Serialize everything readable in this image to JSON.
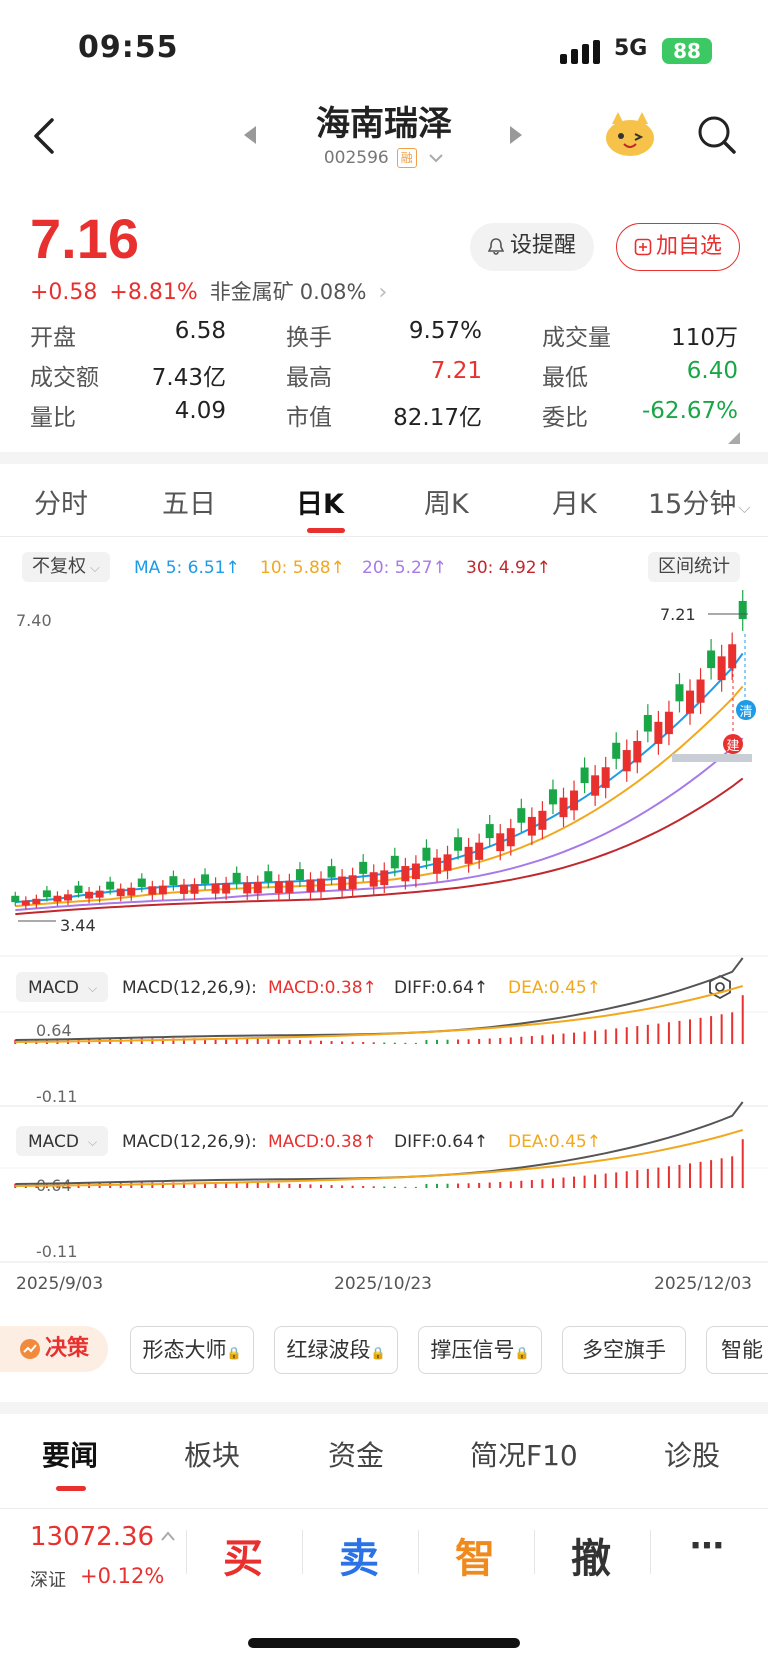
{
  "status": {
    "time": "09:55",
    "network": "5G",
    "battery": "88"
  },
  "header": {
    "stock_name": "海南瑞泽",
    "stock_code": "002596",
    "margin_badge": "融"
  },
  "quote": {
    "price": "7.16",
    "change": "+0.58",
    "change_pct": "+8.81%",
    "sector": "非金属矿",
    "sector_pct": "0.08%",
    "alert_label": "设提醒",
    "watch_label": "加自选"
  },
  "stats": [
    [
      {
        "label": "开盘",
        "value": "6.58",
        "color": "#222"
      },
      {
        "label": "换手",
        "value": "9.57%",
        "color": "#222"
      },
      {
        "label": "成交量",
        "value": "110万",
        "color": "#222"
      }
    ],
    [
      {
        "label": "成交额",
        "value": "7.43亿",
        "color": "#222"
      },
      {
        "label": "最高",
        "value": "7.21",
        "color": "#e8312f"
      },
      {
        "label": "最低",
        "value": "6.40",
        "color": "#19a647"
      }
    ],
    [
      {
        "label": "量比",
        "value": "4.09",
        "color": "#222"
      },
      {
        "label": "市值",
        "value": "82.17亿",
        "color": "#222"
      },
      {
        "label": "委比",
        "value": "-62.67%",
        "color": "#19a647"
      }
    ]
  ],
  "chart_tabs": [
    "分时",
    "五日",
    "日K",
    "周K",
    "月K",
    "15分钟"
  ],
  "chart_header": {
    "adjust": "不复权",
    "ma": [
      {
        "text": "MA 5: 6.51↑",
        "color": "#1e9be8"
      },
      {
        "text": "10: 5.88↑",
        "color": "#f2a81d"
      },
      {
        "text": "20: 5.27↑",
        "color": "#a77ae8"
      },
      {
        "text": "30: 4.92↑",
        "color": "#c0282d"
      }
    ],
    "range_stats": "区间统计"
  },
  "kline": {
    "y_top_label": "7.40",
    "high_label": "7.21",
    "low_label": "3.44",
    "marker_qing": "清",
    "marker_jian": "建"
  },
  "macd": {
    "selector": "MACD",
    "params": "MACD(12,26,9):",
    "macd": "MACD:0.38↑",
    "diff": "DIFF:0.64↑",
    "dea": "DEA:0.45↑",
    "y_top": "0.64",
    "y_bottom": "-0.11"
  },
  "dates": [
    "2025/9/03",
    "2025/10/23",
    "2025/12/03"
  ],
  "tools": {
    "decision": "决策",
    "items": [
      "形态大师",
      "红绿波段",
      "撑压信号",
      "多空旗手",
      "智能"
    ]
  },
  "news_tabs": [
    "要闻",
    "板块",
    "资金",
    "简况F10",
    "诊股"
  ],
  "footer": {
    "index_value": "13072.36",
    "index_name": "深证",
    "index_change": "+0.12%",
    "actions": [
      "买",
      "卖",
      "智",
      "撤",
      "⋯"
    ]
  },
  "colors": {
    "up": "#e8312f",
    "down": "#19a647",
    "ma5": "#1e9be8",
    "ma10": "#f2a81d",
    "ma20": "#a77ae8",
    "ma30": "#c0282d"
  }
}
